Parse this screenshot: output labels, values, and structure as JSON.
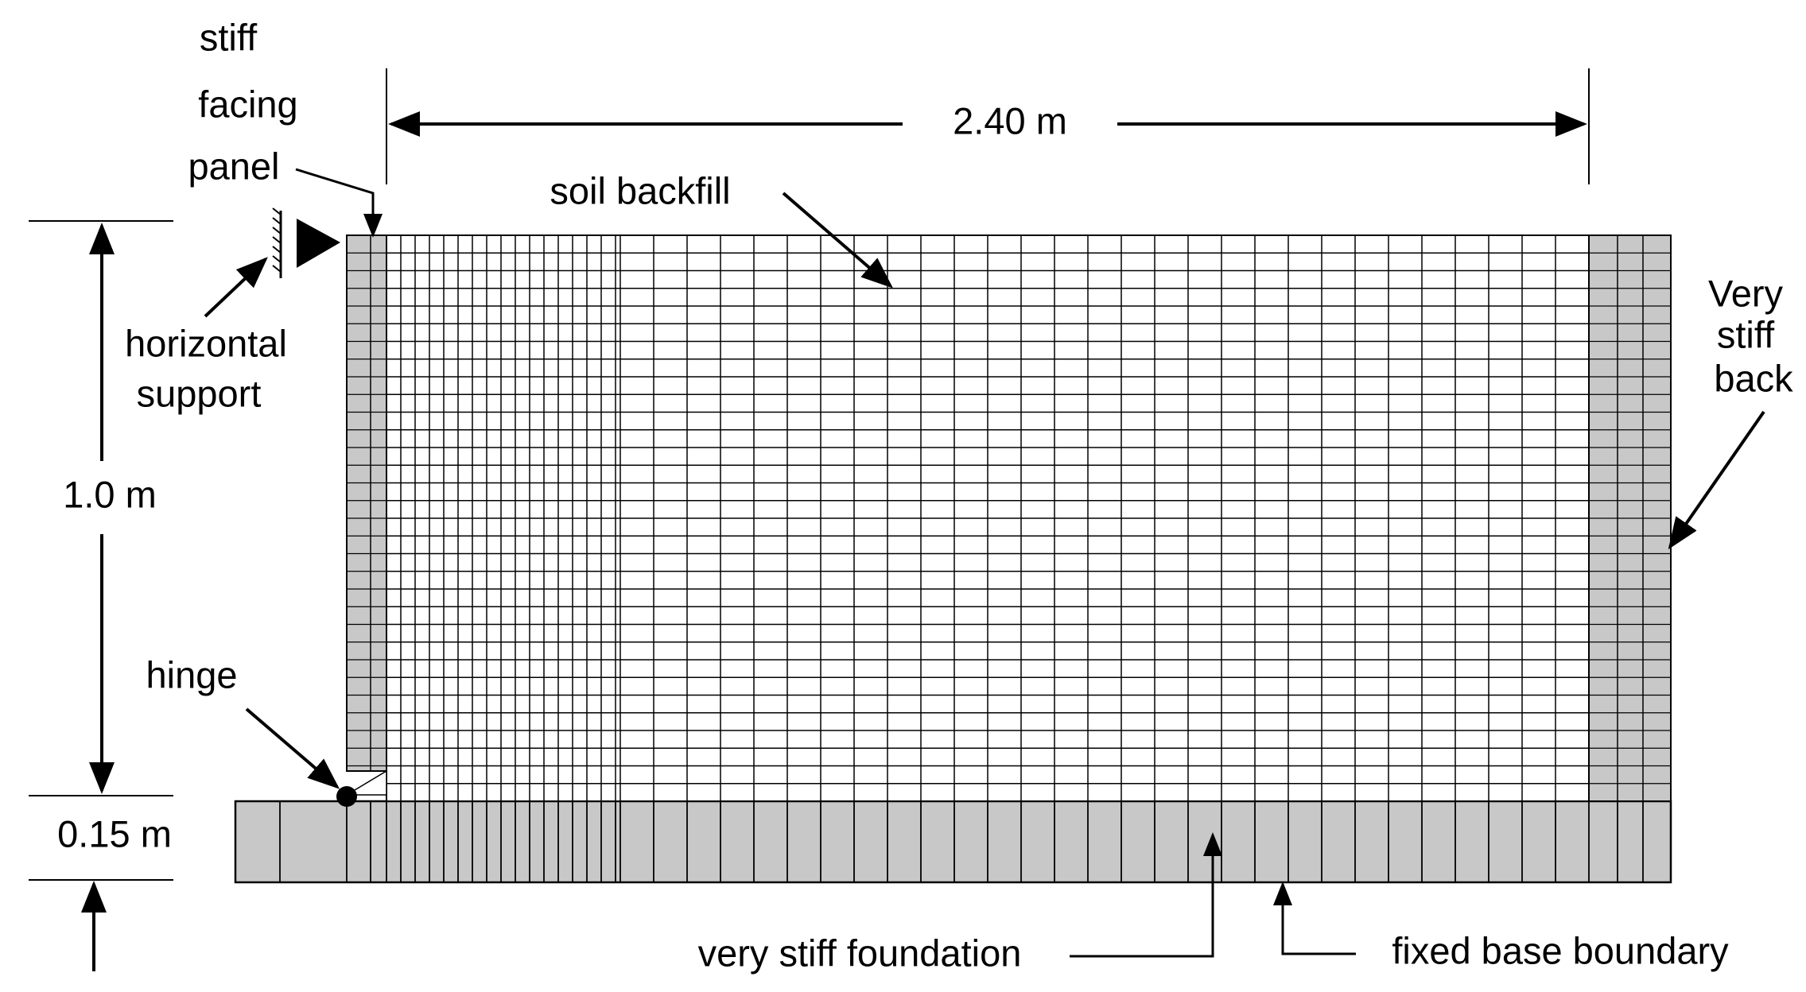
{
  "labels": {
    "stiff_facing_panel": [
      "stiff",
      "facing",
      "panel"
    ],
    "soil_backfill": "soil backfill",
    "width_dimension": "2.40 m",
    "very_stiff_back": [
      "Very",
      "stiff",
      "back"
    ],
    "horizontal_support": [
      "horizontal",
      "support"
    ],
    "height_dimension": "1.0 m",
    "hinge": "hinge",
    "foundation_thickness": "0.15 m",
    "very_stiff_foundation": "very stiff foundation",
    "fixed_base_boundary": "fixed base boundary"
  },
  "colors": {
    "line": "#000000",
    "stiff_fill": "#c8c8c8",
    "soil_fill": "#ffffff",
    "background": "#ffffff"
  }
}
